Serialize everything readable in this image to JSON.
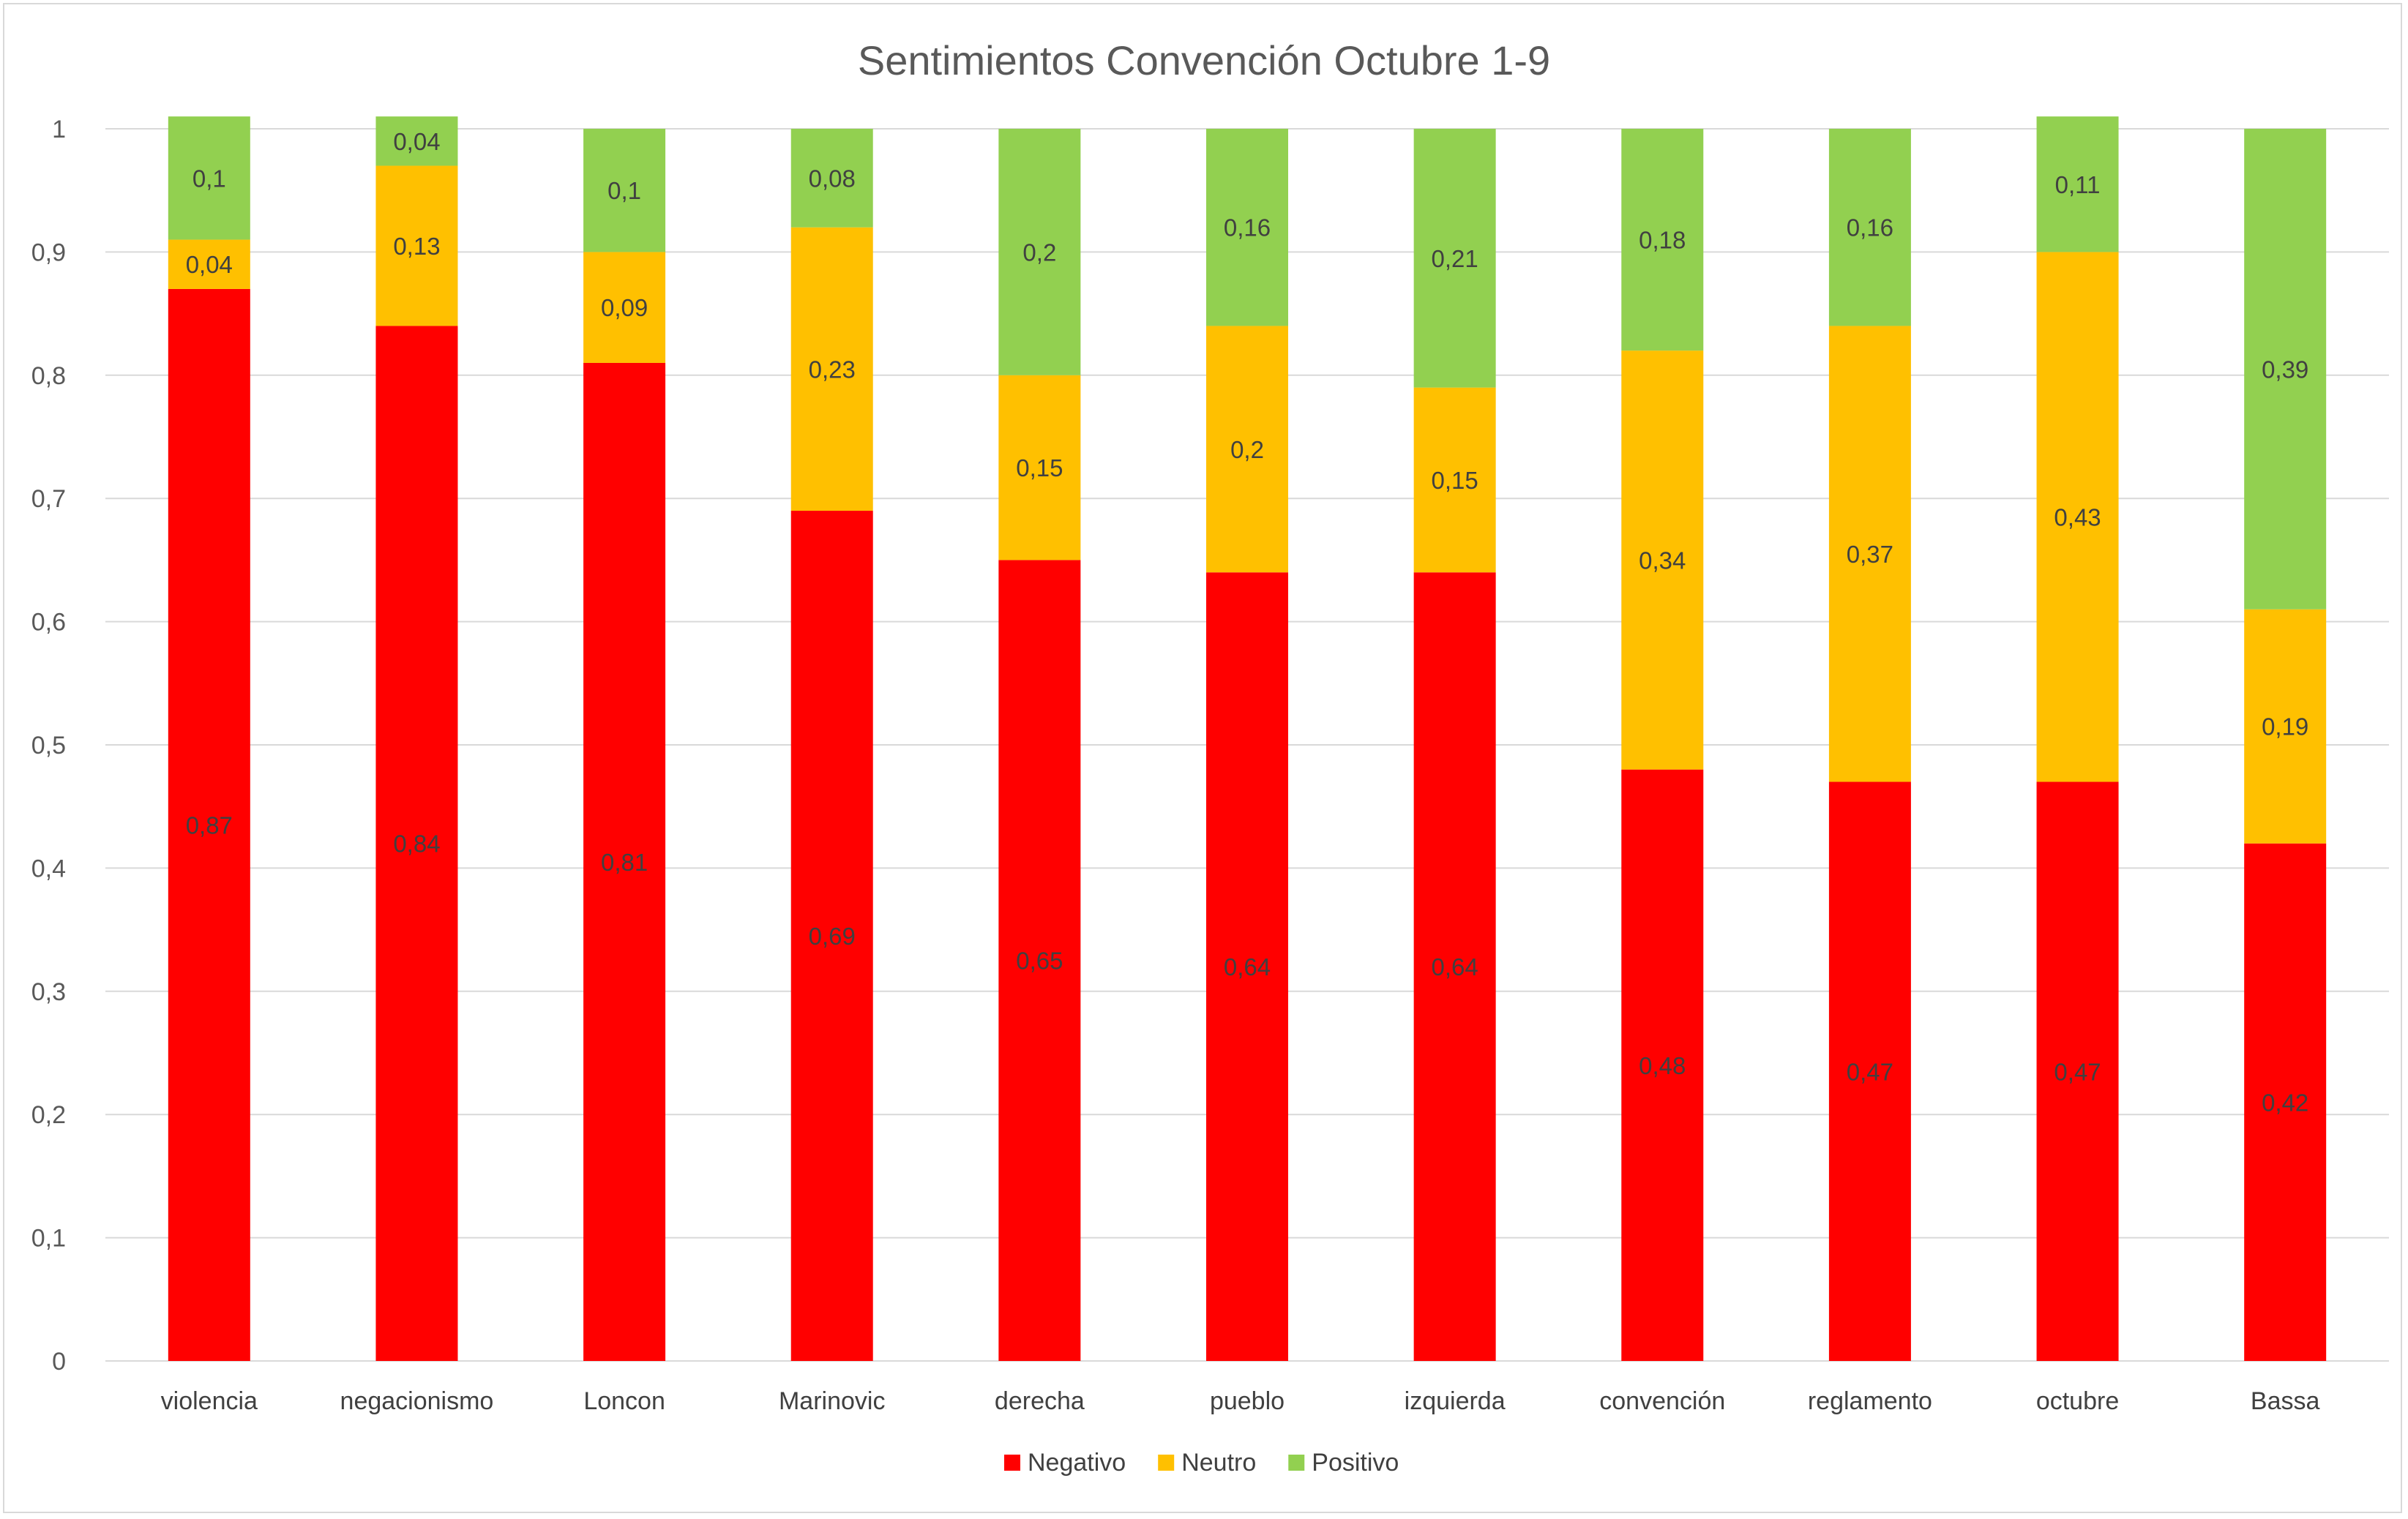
{
  "chart_data": {
    "type": "bar",
    "stacked": true,
    "title": "Sentimientos Convención Octubre 1-9",
    "categories": [
      "violencia",
      "negacionismo",
      "Loncon",
      "Marinovic",
      "derecha",
      "pueblo",
      "izquierda",
      "convención",
      "reglamento",
      "octubre",
      "Bassa"
    ],
    "series": [
      {
        "name": "Negativo",
        "color": "#ff0000",
        "values": [
          0.87,
          0.84,
          0.81,
          0.69,
          0.65,
          0.64,
          0.64,
          0.48,
          0.47,
          0.47,
          0.42
        ],
        "labels": [
          "0,87",
          "0,84",
          "0,81",
          "0,69",
          "0,65",
          "0,64",
          "0,64",
          "0,48",
          "0,47",
          "0,47",
          "0,42"
        ]
      },
      {
        "name": "Neutro",
        "color": "#ffc000",
        "values": [
          0.04,
          0.13,
          0.09,
          0.23,
          0.15,
          0.2,
          0.15,
          0.34,
          0.37,
          0.43,
          0.19
        ],
        "labels": [
          "0,04",
          "0,13",
          "0,09",
          "0,23",
          "0,15",
          "0,2",
          "0,15",
          "0,34",
          "0,37",
          "0,43",
          "0,19"
        ]
      },
      {
        "name": "Positivo",
        "color": "#92d050",
        "values": [
          0.1,
          0.04,
          0.1,
          0.08,
          0.2,
          0.16,
          0.21,
          0.18,
          0.16,
          0.11,
          0.39
        ],
        "labels": [
          "0,1",
          "0,04",
          "0,1",
          "0,08",
          "0,2",
          "0,16",
          "0,21",
          "0,18",
          "0,16",
          "0,11",
          "0,39"
        ]
      }
    ],
    "ylim": [
      0,
      1
    ],
    "yticks": [
      0,
      0.1,
      0.2,
      0.3,
      0.4,
      0.5,
      0.6,
      0.7,
      0.8,
      0.9,
      1
    ],
    "ytick_labels": [
      "0",
      "0,1",
      "0,2",
      "0,3",
      "0,4",
      "0,5",
      "0,6",
      "0,7",
      "0,8",
      "0,9",
      "1"
    ],
    "grid": true,
    "legend_position": "bottom",
    "gridline_color": "#d9d9d9"
  }
}
